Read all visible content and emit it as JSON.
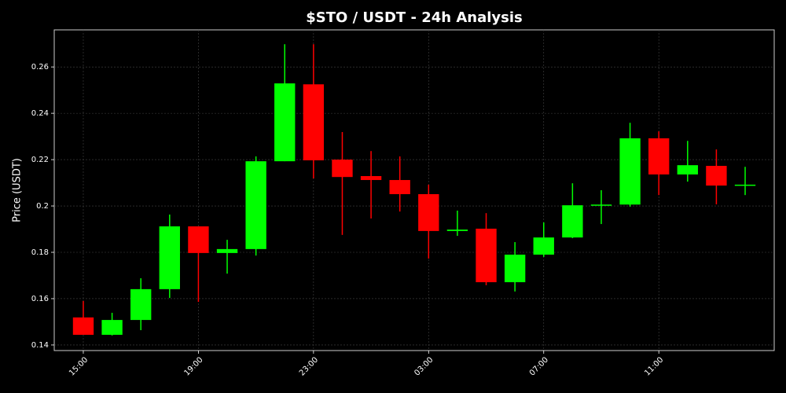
{
  "chart_data": {
    "type": "candlestick",
    "title": "$STO / USDT - 24h Analysis",
    "y_label": "Price (USDT)",
    "categories": [
      "15:00",
      null,
      null,
      null,
      "19:00",
      null,
      null,
      null,
      "23:00",
      null,
      null,
      null,
      "03:00",
      null,
      null,
      null,
      "07:00",
      null,
      null,
      null,
      "11:00",
      null,
      null,
      null
    ],
    "open": [
      0.1519,
      0.1444,
      0.1508,
      0.1641,
      0.1912,
      0.1797,
      0.1814,
      0.2193,
      0.2525,
      0.22,
      0.2129,
      0.2112,
      0.2051,
      0.1892,
      0.1902,
      0.1671,
      0.179,
      0.1864,
      0.2003,
      0.2006,
      0.2292,
      0.2136,
      0.2173,
      0.2088
    ],
    "high": [
      0.159,
      0.1539,
      0.1688,
      0.1963,
      0.1912,
      0.1854,
      0.2214,
      0.2698,
      0.2698,
      0.2319,
      0.2237,
      0.2214,
      0.2092,
      0.198,
      0.1969,
      0.1844,
      0.1929,
      0.2098,
      0.2068,
      0.2359,
      0.2322,
      0.2281,
      0.2244,
      0.2169
    ],
    "low": [
      0.1444,
      0.1441,
      0.1464,
      0.1603,
      0.1586,
      0.1708,
      0.1786,
      0.2193,
      0.2119,
      0.1875,
      0.1946,
      0.1976,
      0.1773,
      0.1871,
      0.1658,
      0.1631,
      0.178,
      0.1861,
      0.1922,
      0.1997,
      0.2047,
      0.2105,
      0.2007,
      0.2047
    ],
    "close": [
      0.1444,
      0.1508,
      0.1641,
      0.1912,
      0.1797,
      0.1814,
      0.2193,
      0.2529,
      0.2197,
      0.2125,
      0.2112,
      0.2051,
      0.1892,
      0.1898,
      0.1671,
      0.179,
      0.1864,
      0.2003,
      0.2006,
      0.2292,
      0.2136,
      0.2176,
      0.2088,
      0.2092
    ],
    "up_color": "#00ff00",
    "down_color": "#ff0000",
    "ylim": [
      0.1376,
      0.276
    ],
    "yticks": [
      0.14,
      0.16,
      0.18,
      0.2,
      0.22,
      0.24,
      0.26
    ],
    "grid": true
  }
}
